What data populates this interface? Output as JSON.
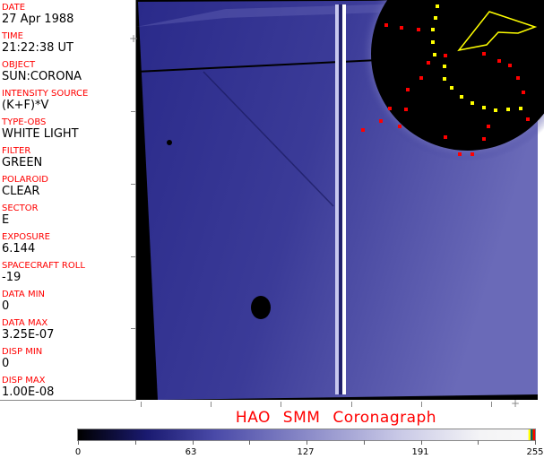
{
  "info": [
    {
      "label": "DATE",
      "value": "27 Apr 1988"
    },
    {
      "label": "TIME",
      "value": "21:22:38 UT"
    },
    {
      "label": "OBJECT",
      "value": "SUN:CORONA"
    },
    {
      "label": "INTENSITY SOURCE",
      "value": "(K+F)*V"
    },
    {
      "label": "TYPE-OBS",
      "value": "WHITE LIGHT"
    },
    {
      "label": "FILTER",
      "value": "GREEN"
    },
    {
      "label": "POLAROID",
      "value": "CLEAR"
    },
    {
      "label": "SECTOR",
      "value": "E"
    },
    {
      "label": "EXPOSURE",
      "value": "6.144"
    },
    {
      "label": "SPACECRAFT ROLL",
      "value": "-19"
    },
    {
      "label": "DATA MIN",
      "value": "0"
    },
    {
      "label": "DATA MAX",
      "value": "3.25E-07"
    },
    {
      "label": "DISP MIN",
      "value": "0"
    },
    {
      "label": "DISP MAX",
      "value": "1.00E-08"
    }
  ],
  "title": "HAO  SMM Coronagraph",
  "colorbar": {
    "ticks": [
      "0",
      "63",
      "127",
      "191",
      "255"
    ],
    "colors": {
      "low": "#000000",
      "mid": "#8a8ac8",
      "high": "#f8f8f8"
    }
  },
  "colors": {
    "label": "#ff0000",
    "overlay_red": "#ff0000",
    "overlay_yellow": "#ffff00"
  }
}
